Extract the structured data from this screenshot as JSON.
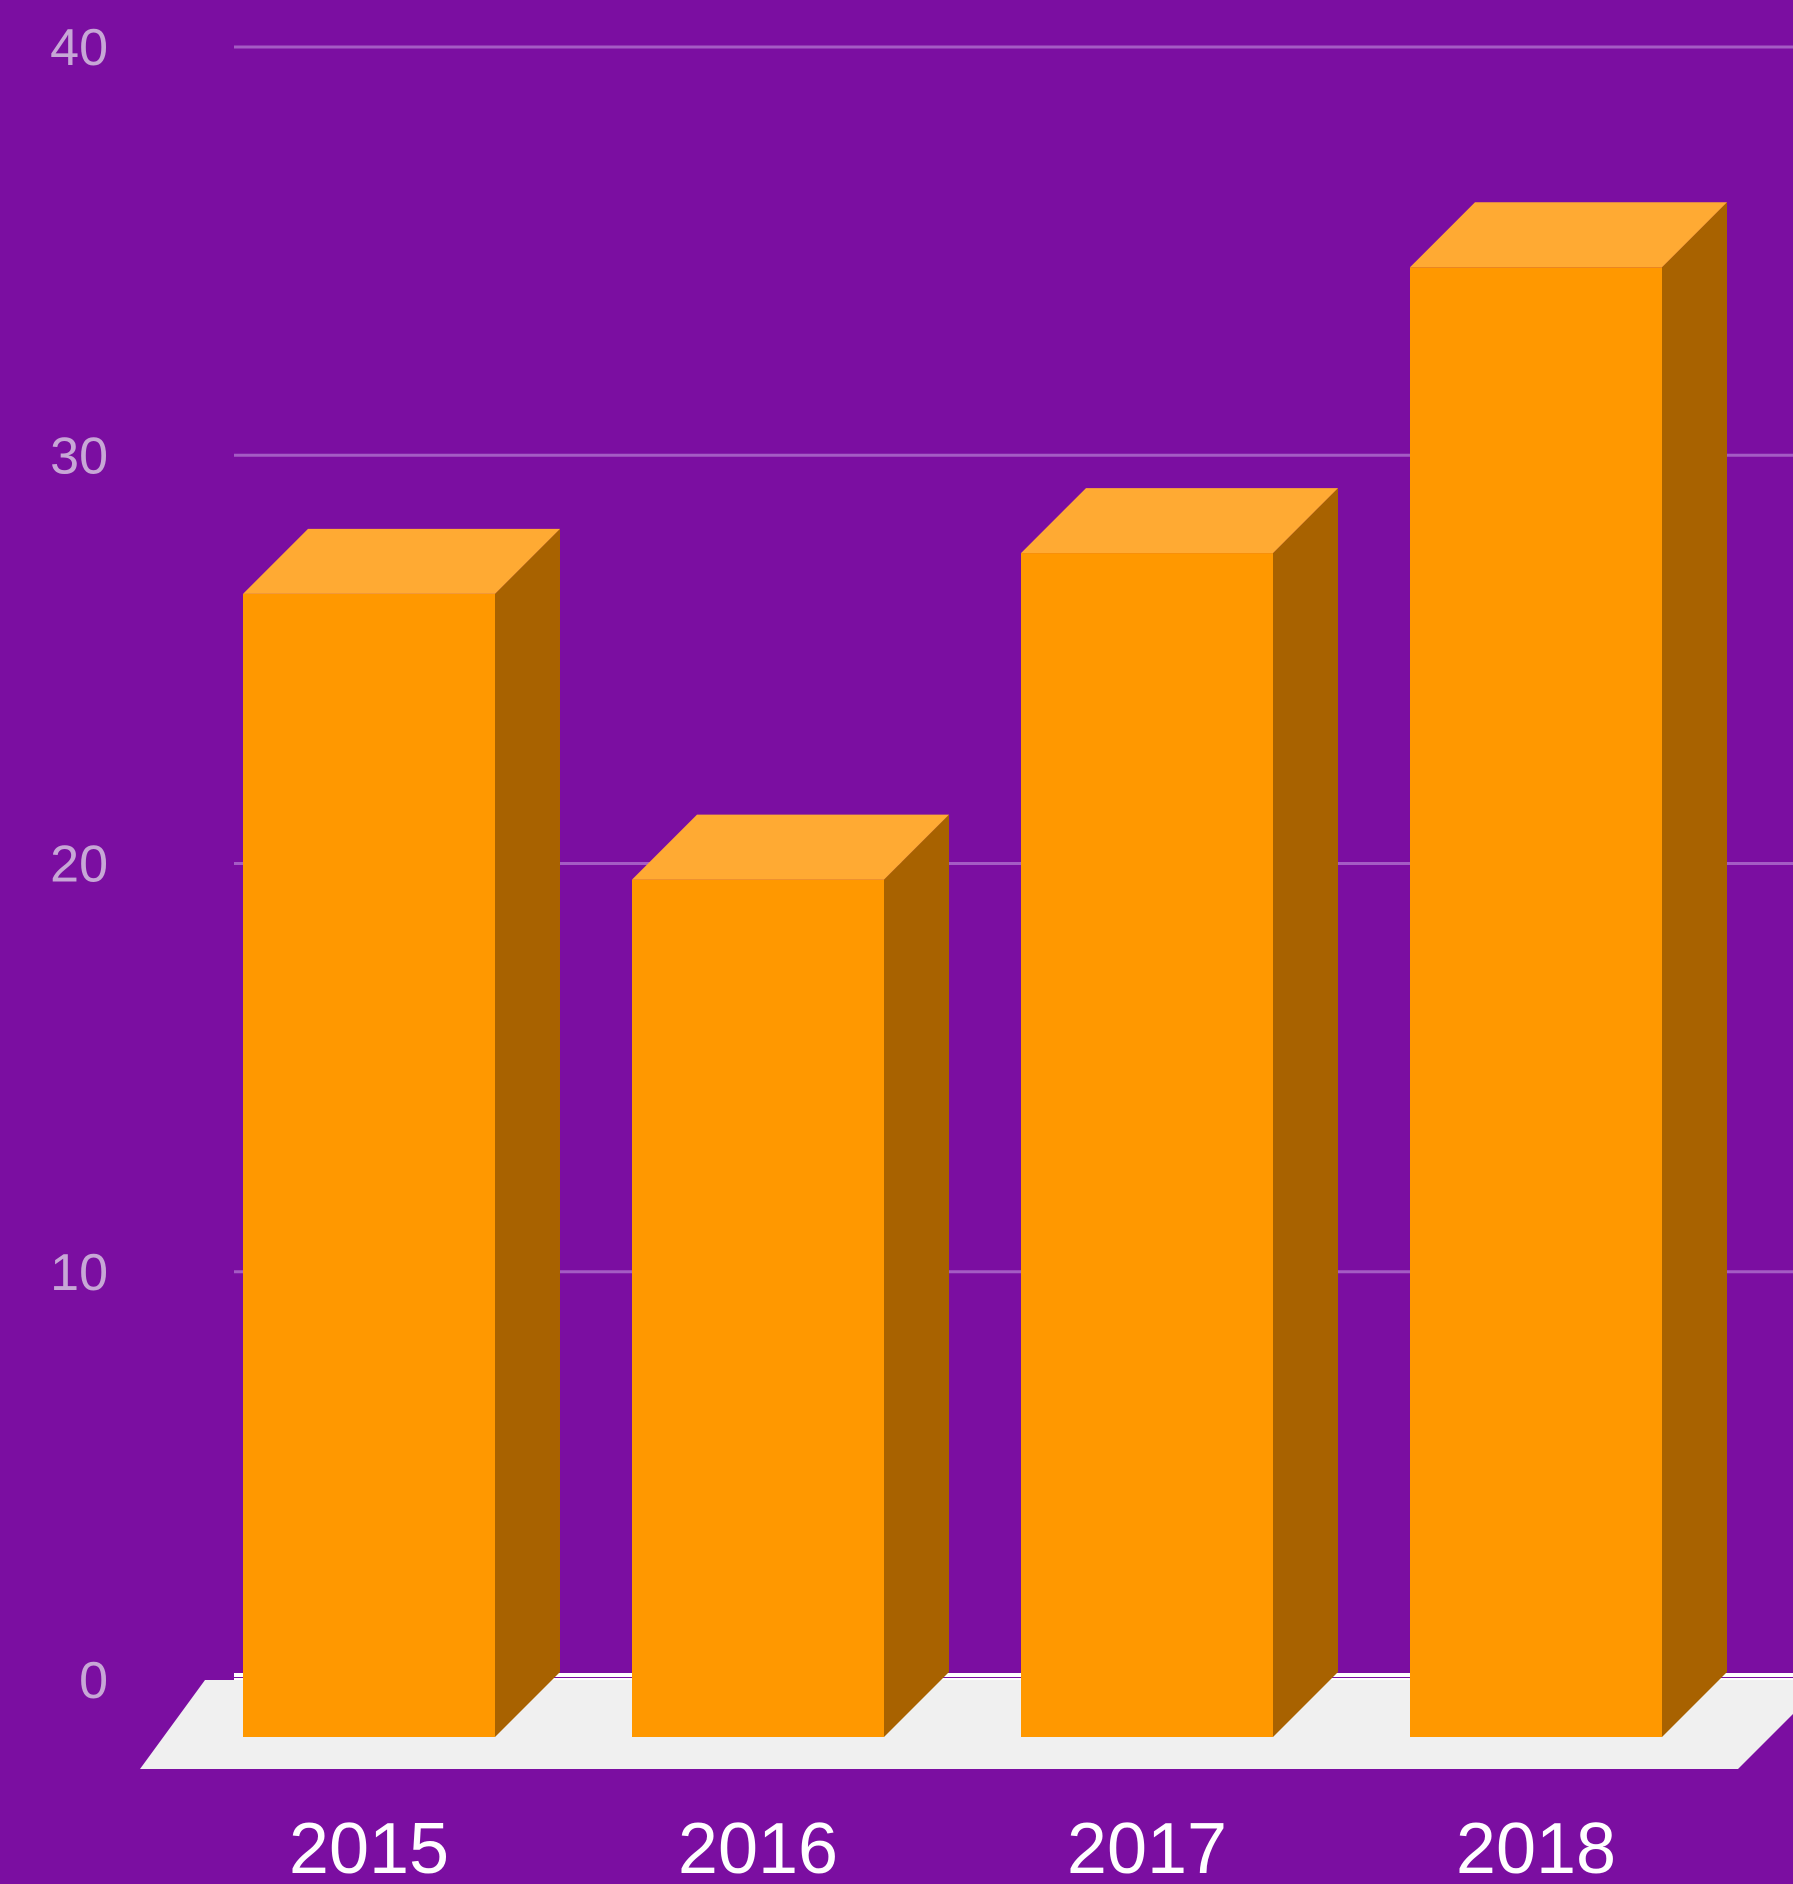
{
  "chart_data": {
    "type": "bar",
    "style": "3d",
    "categories": [
      "2015",
      "2016",
      "2017",
      "2018"
    ],
    "values": [
      28,
      21,
      29,
      36
    ],
    "yticks": [
      "0",
      "10",
      "20",
      "30",
      "40"
    ],
    "ylim": [
      0,
      40
    ],
    "grid": true,
    "legend": "none",
    "title": "",
    "xlabel": "",
    "ylabel": ""
  },
  "colors": {
    "background": "#7b0ea1",
    "bar_front": "#ff9800",
    "bar_top": "#ffaa33",
    "bar_side": "#a86200",
    "floor": "#f0f0f0",
    "gridline": "#a45cc4",
    "ytick_text": "#c7a7d6",
    "xtick_text": "#ffffff"
  }
}
